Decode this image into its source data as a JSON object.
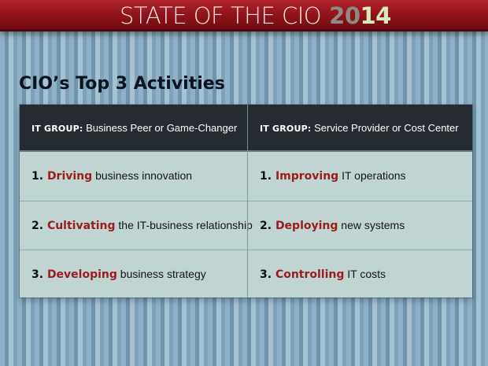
{
  "banner": {
    "title_text": "STATE OF THE CIO",
    "year_part_1": "20",
    "year_part_2": "14"
  },
  "section": {
    "title": "CIO’s Top 3 Activities"
  },
  "table": {
    "columns": [
      {
        "prefix": "IT GROUP:",
        "label": " Business Peer or Game-Changer"
      },
      {
        "prefix": "IT GROUP:",
        "label": " Service Provider or Cost Center"
      }
    ],
    "rows": [
      {
        "left": {
          "number": "1. ",
          "keyword": "Driving",
          "rest": " business innovation"
        },
        "right": {
          "number": "1. ",
          "keyword": "Improving",
          "rest": " IT operations"
        }
      },
      {
        "left": {
          "number": "2. ",
          "keyword": "Cultivating",
          "rest": " the IT-business relationship"
        },
        "right": {
          "number": "2. ",
          "keyword": "Deploying",
          "rest": " new systems"
        }
      },
      {
        "left": {
          "number": "3. ",
          "keyword": "Developing",
          "rest": " business strategy"
        },
        "right": {
          "number": "3. ",
          "keyword": "Controlling",
          "rest": " IT costs"
        }
      }
    ]
  },
  "colors": {
    "banner": "#8f1219",
    "header_dark": "#262b31",
    "keyword_red": "#9b1b1e",
    "table_body": "#c0d4d1",
    "background_stripes": "#7ea3b8"
  }
}
